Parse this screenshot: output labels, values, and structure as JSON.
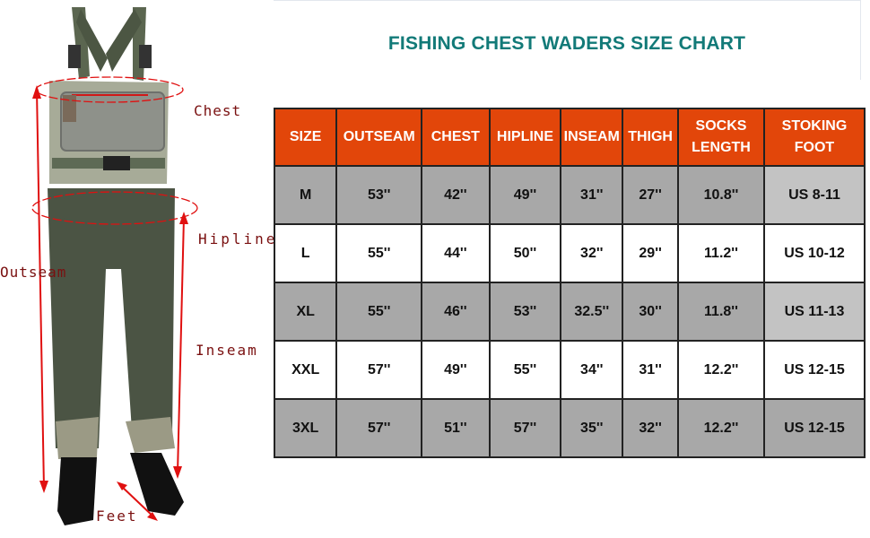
{
  "title": "FISHING CHEST WADERS SIZE CHART",
  "labels": {
    "chest": "Chest",
    "hipline": "Hipline",
    "outseam": "Outseam",
    "inseam": "Inseam",
    "feet": "Feet"
  },
  "colors": {
    "header": "#e2460a",
    "title": "#127a78",
    "row_gray": "#a8a8a8",
    "row_light": "#c3c3c3",
    "annotation": "#e01010"
  },
  "table": {
    "headers": [
      "SIZE",
      "OUTSEAM",
      "CHEST",
      "HIPLINE",
      "INSEAM",
      "THIGH",
      "SOCKS LENGTH",
      "STOKING FOOT"
    ],
    "rows": [
      [
        "M",
        "53''",
        "42''",
        "49''",
        "31''",
        "27''",
        "10.8''",
        "US 8-11"
      ],
      [
        "L",
        "55''",
        "44''",
        "50''",
        "32''",
        "29''",
        "11.2''",
        "US 10-12"
      ],
      [
        "XL",
        "55''",
        "46''",
        "53''",
        "32.5''",
        "30''",
        "11.8''",
        "US 11-13"
      ],
      [
        "XXL",
        "57''",
        "49''",
        "55''",
        "34''",
        "31''",
        "12.2''",
        "US 12-15"
      ],
      [
        "3XL",
        "57''",
        "51''",
        "57''",
        "35''",
        "32''",
        "12.2''",
        "US 12-15"
      ]
    ]
  }
}
